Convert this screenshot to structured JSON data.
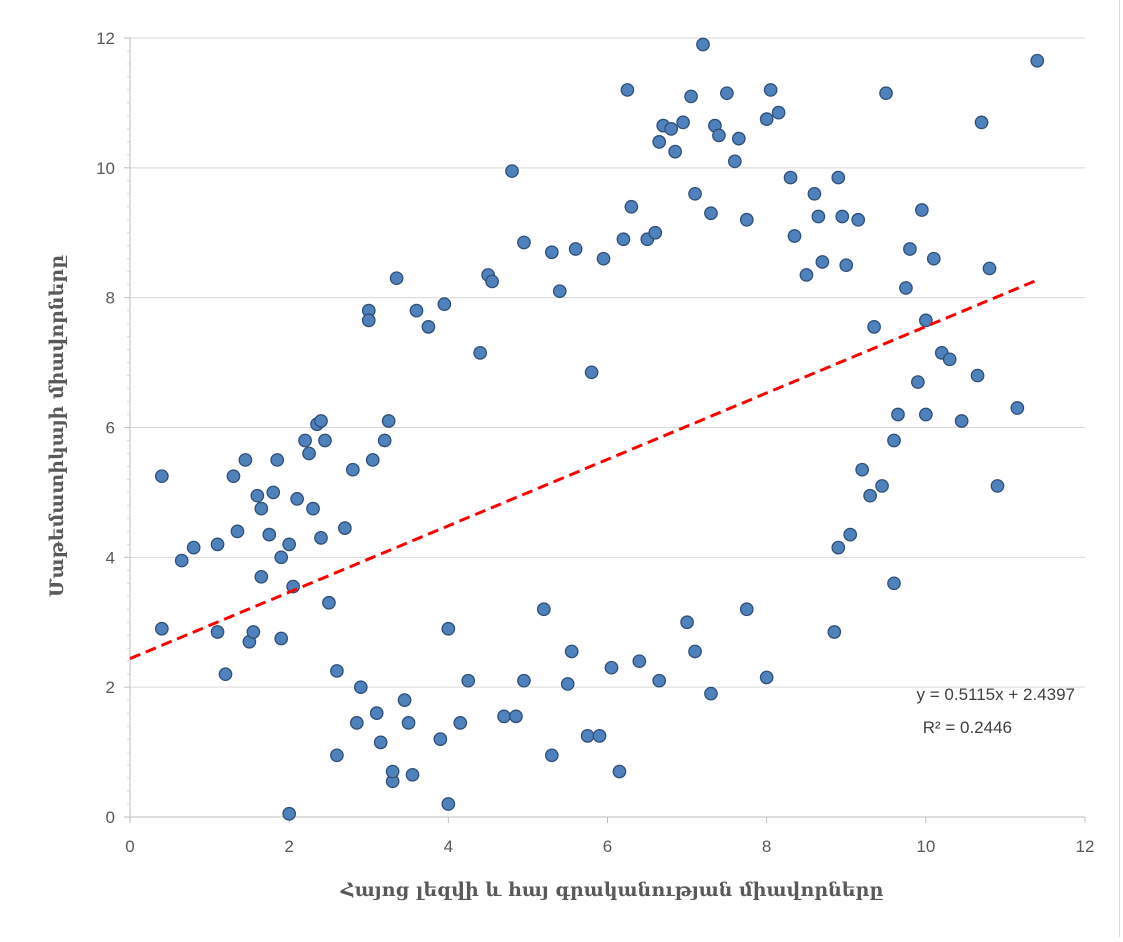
{
  "chart_data": {
    "type": "scatter",
    "title": "",
    "xlabel": "Հայոց լեզվի և հայ գրականության միավորները",
    "ylabel": "Մաթեմատիկայի  միավորները",
    "xlim": [
      0,
      12
    ],
    "ylim": [
      0,
      12
    ],
    "x_ticks": [
      0,
      2,
      4,
      6,
      8,
      10,
      12
    ],
    "y_ticks": [
      0,
      2,
      4,
      6,
      8,
      10,
      12
    ],
    "grid": "horizontal",
    "legend": "none",
    "colors": {
      "marker_fill": "#4f81bd",
      "marker_edge": "#2f4f76",
      "trendline": "#ff0000",
      "grid": "#d9d9d9",
      "axis": "#bfbfbf"
    },
    "series": [
      {
        "marker": "circle",
        "points": [
          [
            0.4,
            5.25
          ],
          [
            0.4,
            2.9
          ],
          [
            0.65,
            3.95
          ],
          [
            0.8,
            4.15
          ],
          [
            1.1,
            4.2
          ],
          [
            1.1,
            2.85
          ],
          [
            1.2,
            2.2
          ],
          [
            1.3,
            5.25
          ],
          [
            1.35,
            4.4
          ],
          [
            1.45,
            5.5
          ],
          [
            1.5,
            2.7
          ],
          [
            1.55,
            2.85
          ],
          [
            1.6,
            4.95
          ],
          [
            1.65,
            4.75
          ],
          [
            1.65,
            3.7
          ],
          [
            1.75,
            4.35
          ],
          [
            1.8,
            5.0
          ],
          [
            1.85,
            5.5
          ],
          [
            1.9,
            4.0
          ],
          [
            1.9,
            2.75
          ],
          [
            2.0,
            4.2
          ],
          [
            2.0,
            0.05
          ],
          [
            2.05,
            3.55
          ],
          [
            2.1,
            4.9
          ],
          [
            2.2,
            5.8
          ],
          [
            2.25,
            5.6
          ],
          [
            2.3,
            4.75
          ],
          [
            2.35,
            6.05
          ],
          [
            2.4,
            6.1
          ],
          [
            2.45,
            5.8
          ],
          [
            2.4,
            4.3
          ],
          [
            2.5,
            3.3
          ],
          [
            2.6,
            0.95
          ],
          [
            2.6,
            2.25
          ],
          [
            2.7,
            4.45
          ],
          [
            2.8,
            5.35
          ],
          [
            2.85,
            1.45
          ],
          [
            2.9,
            2.0
          ],
          [
            3.0,
            7.8
          ],
          [
            3.0,
            7.65
          ],
          [
            3.05,
            5.5
          ],
          [
            3.1,
            1.6
          ],
          [
            3.15,
            1.15
          ],
          [
            3.2,
            5.8
          ],
          [
            3.25,
            6.1
          ],
          [
            3.3,
            0.55
          ],
          [
            3.3,
            0.7
          ],
          [
            3.35,
            8.3
          ],
          [
            3.45,
            1.8
          ],
          [
            3.5,
            1.45
          ],
          [
            3.55,
            0.65
          ],
          [
            3.6,
            7.8
          ],
          [
            3.75,
            7.55
          ],
          [
            3.9,
            1.2
          ],
          [
            3.95,
            7.9
          ],
          [
            4.0,
            0.2
          ],
          [
            4.0,
            2.9
          ],
          [
            4.15,
            1.45
          ],
          [
            4.25,
            2.1
          ],
          [
            4.4,
            7.15
          ],
          [
            4.5,
            8.35
          ],
          [
            4.55,
            8.25
          ],
          [
            4.7,
            1.55
          ],
          [
            4.8,
            9.95
          ],
          [
            4.85,
            1.55
          ],
          [
            4.95,
            8.85
          ],
          [
            4.95,
            2.1
          ],
          [
            5.2,
            3.2
          ],
          [
            5.3,
            0.95
          ],
          [
            5.3,
            8.7
          ],
          [
            5.4,
            8.1
          ],
          [
            5.5,
            2.05
          ],
          [
            5.55,
            2.55
          ],
          [
            5.6,
            8.75
          ],
          [
            5.75,
            1.25
          ],
          [
            5.8,
            6.85
          ],
          [
            5.9,
            1.25
          ],
          [
            5.95,
            8.6
          ],
          [
            6.05,
            2.3
          ],
          [
            6.15,
            0.7
          ],
          [
            6.2,
            8.9
          ],
          [
            6.25,
            11.2
          ],
          [
            6.3,
            9.4
          ],
          [
            6.4,
            2.4
          ],
          [
            6.5,
            8.9
          ],
          [
            6.6,
            9.0
          ],
          [
            6.65,
            10.4
          ],
          [
            6.65,
            2.1
          ],
          [
            6.7,
            10.65
          ],
          [
            6.8,
            10.6
          ],
          [
            6.85,
            10.25
          ],
          [
            6.95,
            10.7
          ],
          [
            7.0,
            3.0
          ],
          [
            7.05,
            11.1
          ],
          [
            7.1,
            9.6
          ],
          [
            7.1,
            2.55
          ],
          [
            7.2,
            11.9
          ],
          [
            7.3,
            9.3
          ],
          [
            7.3,
            1.9
          ],
          [
            7.35,
            10.65
          ],
          [
            7.4,
            10.5
          ],
          [
            7.5,
            11.15
          ],
          [
            7.6,
            10.1
          ],
          [
            7.65,
            10.45
          ],
          [
            7.75,
            9.2
          ],
          [
            7.75,
            3.2
          ],
          [
            8.0,
            10.75
          ],
          [
            8.05,
            11.2
          ],
          [
            8.15,
            10.85
          ],
          [
            8.0,
            2.15
          ],
          [
            8.3,
            9.85
          ],
          [
            8.35,
            8.95
          ],
          [
            8.5,
            8.35
          ],
          [
            8.6,
            9.6
          ],
          [
            8.65,
            9.25
          ],
          [
            8.7,
            8.55
          ],
          [
            8.85,
            2.85
          ],
          [
            8.9,
            9.85
          ],
          [
            8.9,
            4.15
          ],
          [
            8.95,
            9.25
          ],
          [
            9.0,
            8.5
          ],
          [
            9.05,
            4.35
          ],
          [
            9.15,
            9.2
          ],
          [
            9.2,
            5.35
          ],
          [
            9.3,
            4.95
          ],
          [
            9.35,
            7.55
          ],
          [
            9.45,
            5.1
          ],
          [
            9.5,
            11.15
          ],
          [
            9.6,
            3.6
          ],
          [
            9.6,
            5.8
          ],
          [
            9.65,
            6.2
          ],
          [
            9.75,
            8.15
          ],
          [
            9.8,
            8.75
          ],
          [
            9.9,
            6.7
          ],
          [
            9.95,
            9.35
          ],
          [
            10.0,
            7.65
          ],
          [
            10.0,
            6.2
          ],
          [
            10.1,
            8.6
          ],
          [
            10.2,
            7.15
          ],
          [
            10.3,
            7.05
          ],
          [
            10.45,
            6.1
          ],
          [
            10.65,
            6.8
          ],
          [
            10.7,
            10.7
          ],
          [
            10.8,
            8.45
          ],
          [
            10.9,
            5.1
          ],
          [
            11.15,
            6.3
          ],
          [
            11.4,
            11.65
          ]
        ]
      }
    ],
    "trendline": {
      "type": "linear",
      "slope": 0.5115,
      "intercept": 2.4397,
      "x_range": [
        0,
        11.4
      ],
      "style": "dashed"
    },
    "annotations": {
      "equation": "y = 0.5115x + 2.4397",
      "r_squared": "R² = 0.2446"
    }
  }
}
